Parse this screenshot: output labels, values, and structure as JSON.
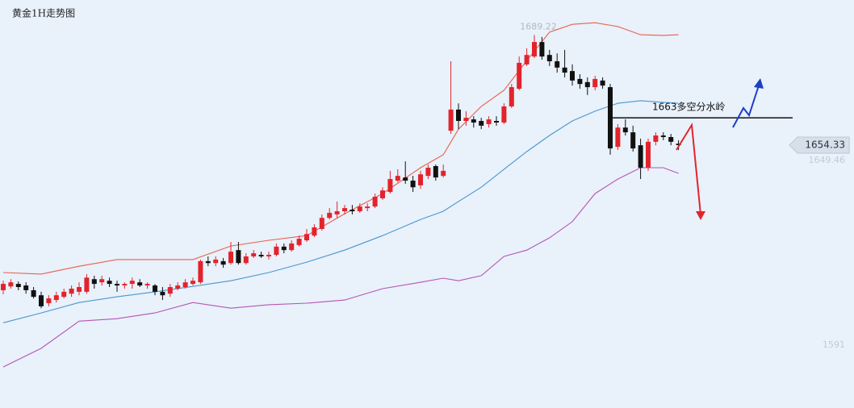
{
  "chart_data": {
    "type": "candlestick",
    "title": "黄金1H走势图",
    "ylim": [
      1571.1,
      1700.3
    ],
    "yticks": [
      1591
    ],
    "grid": false,
    "up_color": "#e3232c",
    "down_color": "#111111",
    "open": [
      1608.4,
      1609.6,
      1610.4,
      1609.9,
      1608.4,
      1606.8,
      1604.3,
      1605.3,
      1606.3,
      1607.3,
      1607.9,
      1607.9,
      1611.9,
      1610.9,
      1611.4,
      1610.4,
      1609.9,
      1610.4,
      1610.9,
      1609.9,
      1609.9,
      1607.9,
      1607.3,
      1608.9,
      1609.4,
      1610.4,
      1610.9,
      1617.6,
      1617.0,
      1617.6,
      1617.0,
      1621.1,
      1617.0,
      1619.1,
      1619.6,
      1619.1,
      1619.6,
      1622.2,
      1621.1,
      1622.7,
      1624.2,
      1625.7,
      1627.8,
      1631.3,
      1632.4,
      1633.4,
      1633.9,
      1633.4,
      1634.4,
      1634.9,
      1637.5,
      1639.5,
      1643.1,
      1644.1,
      1643.1,
      1641.6,
      1644.6,
      1647.7,
      1644.6,
      1658.9,
      1665.6,
      1662.0,
      1662.5,
      1662.0,
      1661.0,
      1662.0,
      1661.5,
      1666.6,
      1672.2,
      1679.9,
      1682.4,
      1687.0,
      1682.9,
      1680.9,
      1678.9,
      1677.8,
      1675.3,
      1674.3,
      1672.7,
      1674.8,
      1672.7,
      1653.8,
      1659.9,
      1658.4,
      1654.3,
      1647.2,
      1655.4,
      1657.4,
      1656.9,
      1654.8
    ],
    "high": [
      1611.4,
      1611.9,
      1611.2,
      1610.9,
      1609.4,
      1607.9,
      1606.8,
      1607.9,
      1608.9,
      1609.9,
      1610.9,
      1613.5,
      1613.0,
      1613.0,
      1612.4,
      1611.4,
      1610.9,
      1612.4,
      1611.9,
      1610.9,
      1610.4,
      1609.4,
      1610.4,
      1610.9,
      1611.9,
      1612.4,
      1618.1,
      1619.1,
      1619.1,
      1618.6,
      1623.7,
      1623.7,
      1620.1,
      1621.1,
      1620.6,
      1620.6,
      1623.2,
      1623.2,
      1624.2,
      1625.7,
      1627.8,
      1629.3,
      1632.4,
      1634.4,
      1636.5,
      1635.4,
      1635.4,
      1635.9,
      1635.9,
      1639.0,
      1641.0,
      1646.2,
      1646.7,
      1649.2,
      1644.6,
      1646.2,
      1648.2,
      1648.2,
      1648.2,
      1680.9,
      1667.6,
      1665.1,
      1663.5,
      1663.0,
      1663.5,
      1663.5,
      1667.6,
      1673.7,
      1682.4,
      1685.0,
      1689.22,
      1688.6,
      1684.5,
      1683.4,
      1684.5,
      1679.9,
      1676.8,
      1675.8,
      1676.3,
      1675.8,
      1673.7,
      1661.0,
      1662.5,
      1660.5,
      1656.4,
      1656.4,
      1658.4,
      1658.4,
      1657.9,
      1655.9
    ],
    "low": [
      1607.1,
      1608.9,
      1608.4,
      1607.3,
      1605.8,
      1602.7,
      1603.3,
      1604.5,
      1605.8,
      1606.3,
      1606.8,
      1607.3,
      1608.9,
      1609.9,
      1609.4,
      1607.9,
      1608.9,
      1608.9,
      1609.4,
      1608.9,
      1606.8,
      1605.3,
      1606.3,
      1608.4,
      1608.9,
      1609.9,
      1610.4,
      1616.0,
      1616.0,
      1615.5,
      1616.5,
      1616.5,
      1616.5,
      1618.6,
      1618.6,
      1618.1,
      1619.1,
      1620.1,
      1620.6,
      1622.2,
      1623.7,
      1625.2,
      1627.3,
      1630.8,
      1631.3,
      1632.4,
      1632.4,
      1632.9,
      1633.4,
      1634.4,
      1637.0,
      1639.0,
      1642.6,
      1642.1,
      1639.5,
      1640.5,
      1643.6,
      1643.1,
      1644.1,
      1657.9,
      1659.4,
      1660.5,
      1659.9,
      1659.4,
      1659.9,
      1660.5,
      1661.0,
      1666.1,
      1671.7,
      1679.4,
      1681.9,
      1681.4,
      1679.4,
      1677.3,
      1675.8,
      1673.2,
      1672.2,
      1670.2,
      1671.7,
      1672.2,
      1651.3,
      1652.8,
      1657.4,
      1652.3,
      1643.6,
      1646.2,
      1654.3,
      1655.9,
      1654.3,
      1652.8
    ],
    "close": [
      1610.4,
      1610.9,
      1609.4,
      1608.4,
      1606.3,
      1603.3,
      1605.8,
      1606.8,
      1607.9,
      1608.9,
      1609.4,
      1612.4,
      1610.4,
      1611.9,
      1610.4,
      1609.9,
      1610.4,
      1611.4,
      1609.9,
      1610.4,
      1607.9,
      1606.8,
      1609.4,
      1609.9,
      1610.9,
      1611.4,
      1617.6,
      1617.0,
      1618.1,
      1616.5,
      1620.6,
      1617.0,
      1619.1,
      1620.1,
      1619.1,
      1619.6,
      1622.2,
      1621.1,
      1623.2,
      1624.7,
      1626.2,
      1628.3,
      1631.3,
      1632.9,
      1633.4,
      1634.4,
      1633.4,
      1634.9,
      1634.9,
      1638.0,
      1640.0,
      1643.6,
      1644.6,
      1643.1,
      1641.0,
      1645.1,
      1647.2,
      1644.1,
      1646.2,
      1665.6,
      1662.0,
      1663.0,
      1661.5,
      1660.5,
      1662.5,
      1661.5,
      1666.6,
      1672.7,
      1680.4,
      1682.9,
      1687.0,
      1682.4,
      1680.9,
      1678.9,
      1677.3,
      1674.8,
      1673.7,
      1672.7,
      1675.3,
      1673.2,
      1653.3,
      1659.9,
      1658.4,
      1653.3,
      1647.2,
      1655.4,
      1657.4,
      1656.9,
      1655.4,
      1654.33
    ],
    "bands": [
      {
        "color": "#e8604c",
        "x": [
          0,
          5,
          10,
          15,
          20,
          25,
          30,
          35,
          40,
          45,
          50,
          55,
          58,
          60,
          63,
          66,
          69,
          72,
          75,
          78,
          81,
          84,
          87,
          89
        ],
        "values": [
          1614.0,
          1613.5,
          1616.0,
          1618.1,
          1618.1,
          1618.1,
          1622.4,
          1624.2,
          1625.7,
          1632.6,
          1639.0,
          1647.2,
          1651.3,
          1659.4,
          1666.6,
          1671.7,
          1681.1,
          1690.1,
          1692.6,
          1693.1,
          1691.9,
          1689.3,
          1689.1,
          1689.3
        ]
      },
      {
        "color": "#4b96cf",
        "x": [
          0,
          5,
          10,
          15,
          20,
          25,
          30,
          35,
          40,
          45,
          50,
          55,
          58,
          60,
          63,
          66,
          69,
          72,
          75,
          78,
          81,
          84,
          87,
          89
        ],
        "values": [
          1598.1,
          1601.2,
          1604.5,
          1606.3,
          1607.9,
          1609.6,
          1611.4,
          1614.0,
          1617.3,
          1621.1,
          1625.7,
          1630.8,
          1633.4,
          1636.5,
          1641.0,
          1646.7,
          1652.3,
          1657.4,
          1662.0,
          1665.1,
          1667.6,
          1668.4,
          1667.9,
          1667.6
        ]
      },
      {
        "color": "#b455b8",
        "x": [
          0,
          5,
          10,
          15,
          20,
          25,
          30,
          35,
          40,
          45,
          50,
          55,
          58,
          60,
          63,
          66,
          69,
          72,
          75,
          78,
          81,
          84,
          87,
          89
        ],
        "values": [
          1584.1,
          1590.0,
          1598.6,
          1599.4,
          1601.2,
          1604.5,
          1602.7,
          1603.8,
          1604.3,
          1605.3,
          1608.9,
          1610.9,
          1612.2,
          1611.4,
          1613.0,
          1619.1,
          1621.1,
          1625.0,
          1630.1,
          1639.0,
          1643.6,
          1647.2,
          1647.2,
          1645.4
        ]
      }
    ],
    "level_line": {
      "value": 1663,
      "label": "1663多空分水岭",
      "color": "#111111"
    },
    "max_price": 1689.22,
    "last_price": 1654.33,
    "second_price": 1649.46
  }
}
